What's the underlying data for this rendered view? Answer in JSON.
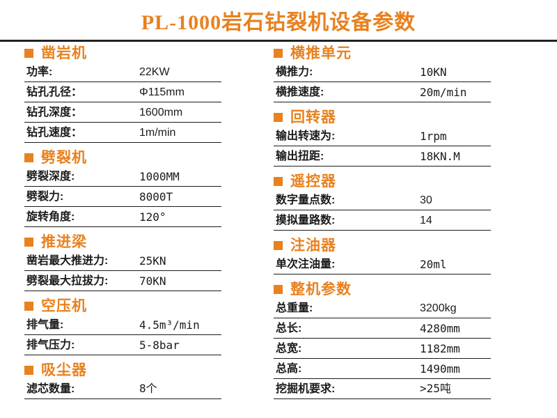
{
  "title": "PL-1000岩石钻裂机设备参数",
  "colors": {
    "accent": "#e8811e",
    "text": "#1a1a1a",
    "rule": "#1a1a1a"
  },
  "left_sections": [
    {
      "title": "凿岩机",
      "rows": [
        {
          "label": "功率:",
          "value": "22KW"
        },
        {
          "label": "钻孔孔径：",
          "value": "Φ115mm"
        },
        {
          "label": "钻孔深度：",
          "value": "1600mm"
        },
        {
          "label": "钻孔速度：",
          "value": "1m/min"
        }
      ]
    },
    {
      "title": "劈裂机",
      "rows": [
        {
          "label": "劈裂深度:",
          "value": "1000MM"
        },
        {
          "label": "劈裂力:",
          "value": "8000T"
        },
        {
          "label": "旋转角度:",
          "value": "120°"
        }
      ]
    },
    {
      "title": "推进梁",
      "rows": [
        {
          "label": "凿岩最大推进力:",
          "value": "25KN"
        },
        {
          "label": "劈裂最大拉拔力:",
          "value": "70KN"
        }
      ]
    },
    {
      "title": "空压机",
      "rows": [
        {
          "label": "排气量:",
          "value": "4.5m³/min"
        },
        {
          "label": "排气压力:",
          "value": "5-8bar"
        }
      ]
    },
    {
      "title": "吸尘器",
      "rows": [
        {
          "label": "滤芯数量:",
          "value": "8个"
        }
      ]
    }
  ],
  "right_sections": [
    {
      "title": "横推单元",
      "rows": [
        {
          "label": "横推力:",
          "value": "10KN"
        },
        {
          "label": "横推速度:",
          "value": "20m/min"
        }
      ]
    },
    {
      "title": "回转器",
      "rows": [
        {
          "label": "输出转速为:",
          "value": "1rpm"
        },
        {
          "label": "输出扭距:",
          "value": "18KN.M"
        }
      ]
    },
    {
      "title": "遥控器",
      "rows": [
        {
          "label": "数字量点数:",
          "value": "30"
        },
        {
          "label": "摸拟量路数:",
          "value": "14"
        }
      ]
    },
    {
      "title": "注油器",
      "rows": [
        {
          "label": "单次注油量:",
          "value": "20ml"
        }
      ]
    },
    {
      "title": "整机参数",
      "rows": [
        {
          "label": "总重量:",
          "value": "3200kg"
        },
        {
          "label": "总长:",
          "value": "4280mm"
        },
        {
          "label": "总宽:",
          "value": "1182mm"
        },
        {
          "label": "总高:",
          "value": "1490mm"
        },
        {
          "label": "挖掘机要求:",
          "value": ">25吨"
        }
      ]
    }
  ]
}
